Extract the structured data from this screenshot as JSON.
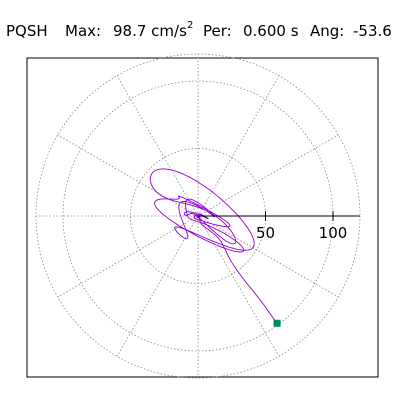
{
  "header": {
    "station": "PQSH",
    "max_label": "Max:",
    "max_value": "98.7 cm/s",
    "max_exp": "2",
    "per_label": "Per:",
    "per_value": "0.600 s",
    "ang_label": "Ang:",
    "ang_value": "-53.6"
  },
  "chart_data": {
    "type": "polar-particle-motion",
    "title": "",
    "rlim": [
      0,
      120
    ],
    "radial_ticks": [
      50,
      100
    ],
    "radial_tick_labels": [
      "50",
      "100"
    ],
    "angular_grid_step_deg": 30,
    "rings": [
      50,
      100
    ],
    "grid": true,
    "trace_color": "#9400d3",
    "end_marker_color": "#008b5a",
    "max_amplitude": 98.7,
    "max_angle_deg": -53.6,
    "period_s": 0.6
  }
}
